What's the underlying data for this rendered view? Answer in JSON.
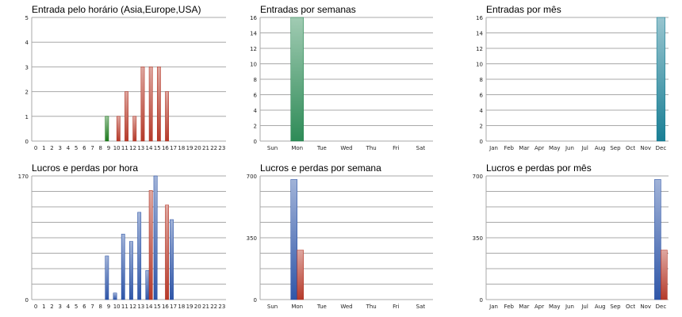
{
  "chart_data": [
    {
      "type": "bar",
      "title": "Entrada pelo horário (Asia,Europe,USA)",
      "categories": [
        "0",
        "1",
        "2",
        "3",
        "4",
        "5",
        "6",
        "7",
        "8",
        "9",
        "10",
        "11",
        "12",
        "13",
        "14",
        "15",
        "16",
        "17",
        "18",
        "19",
        "20",
        "21",
        "22",
        "23"
      ],
      "ylim": [
        0,
        5
      ],
      "yticks": [
        "0",
        "1",
        "2",
        "3",
        "4",
        "5"
      ],
      "series": [
        {
          "values": [
            0,
            0,
            0,
            0,
            0,
            0,
            0,
            0,
            0,
            1,
            0,
            0,
            0,
            0,
            0,
            0,
            0,
            0,
            0,
            0,
            0,
            0,
            0,
            0
          ],
          "color": "#1e7a1e"
        },
        {
          "values": [
            0,
            0,
            0,
            0,
            0,
            0,
            0,
            0,
            0,
            0,
            1,
            2,
            1,
            3,
            3,
            3,
            2,
            0,
            0,
            0,
            0,
            0,
            0,
            0
          ],
          "color": "#b53a2a"
        }
      ]
    },
    {
      "type": "bar",
      "title": "Entradas por semanas",
      "categories": [
        "Sun",
        "Mon",
        "Tue",
        "Wed",
        "Thu",
        "Fri",
        "Sat"
      ],
      "ylim": [
        0,
        16
      ],
      "yticks": [
        "0",
        "2",
        "4",
        "6",
        "8",
        "10",
        "12",
        "14",
        "16"
      ],
      "series": [
        {
          "values": [
            0,
            16,
            0,
            0,
            0,
            0,
            0
          ],
          "color": "#2e8b57"
        }
      ]
    },
    {
      "type": "bar",
      "title": "Entradas por mês",
      "categories": [
        "Jan",
        "Feb",
        "Mar",
        "Apr",
        "May",
        "Jun",
        "Jul",
        "Aug",
        "Sep",
        "Oct",
        "Nov",
        "Dec"
      ],
      "ylim": [
        0,
        16
      ],
      "yticks": [
        "0",
        "2",
        "4",
        "6",
        "8",
        "10",
        "12",
        "14",
        "16"
      ],
      "series": [
        {
          "values": [
            0,
            0,
            0,
            0,
            0,
            0,
            0,
            0,
            0,
            0,
            0,
            16
          ],
          "color": "#1a7f95"
        }
      ]
    },
    {
      "type": "bar",
      "title": "Lucros e perdas por hora",
      "categories": [
        "0",
        "1",
        "2",
        "3",
        "4",
        "5",
        "6",
        "7",
        "8",
        "9",
        "10",
        "11",
        "12",
        "13",
        "14",
        "15",
        "16",
        "17",
        "18",
        "19",
        "20",
        "21",
        "22",
        "23"
      ],
      "ylim": [
        0,
        170
      ],
      "yticks": [
        "0",
        "170"
      ],
      "series": [
        {
          "values": [
            0,
            0,
            0,
            0,
            0,
            0,
            0,
            0,
            0,
            60,
            9,
            90,
            80,
            120,
            40,
            170,
            0,
            110,
            0,
            0,
            0,
            0,
            0,
            0
          ],
          "color": "#2f56a8"
        },
        {
          "values": [
            0,
            0,
            0,
            0,
            0,
            0,
            0,
            0,
            0,
            0,
            0,
            0,
            0,
            0,
            150,
            0,
            130,
            0,
            0,
            0,
            0,
            0,
            0,
            0
          ],
          "color": "#b53a2a"
        }
      ]
    },
    {
      "type": "bar",
      "title": "Lucros e perdas por semana",
      "categories": [
        "Sun",
        "Mon",
        "Tue",
        "Wed",
        "Thu",
        "Fri",
        "Sat"
      ],
      "ylim": [
        0,
        700
      ],
      "yticks": [
        "0",
        "350",
        "700"
      ],
      "series": [
        {
          "values": [
            0,
            680,
            0,
            0,
            0,
            0,
            0
          ],
          "color": "#2f56a8"
        },
        {
          "values": [
            0,
            280,
            0,
            0,
            0,
            0,
            0
          ],
          "color": "#b53a2a"
        }
      ]
    },
    {
      "type": "bar",
      "title": "Lucros e perdas por mês",
      "categories": [
        "Jan",
        "Feb",
        "Mar",
        "Apr",
        "May",
        "Jun",
        "Jul",
        "Aug",
        "Sep",
        "Oct",
        "Nov",
        "Dec"
      ],
      "ylim": [
        0,
        700
      ],
      "yticks": [
        "0",
        "350",
        "700"
      ],
      "series": [
        {
          "values": [
            0,
            0,
            0,
            0,
            0,
            0,
            0,
            0,
            0,
            0,
            0,
            680
          ],
          "color": "#2f56a8"
        },
        {
          "values": [
            0,
            0,
            0,
            0,
            0,
            0,
            0,
            0,
            0,
            0,
            0,
            280
          ],
          "color": "#b53a2a"
        }
      ]
    }
  ]
}
